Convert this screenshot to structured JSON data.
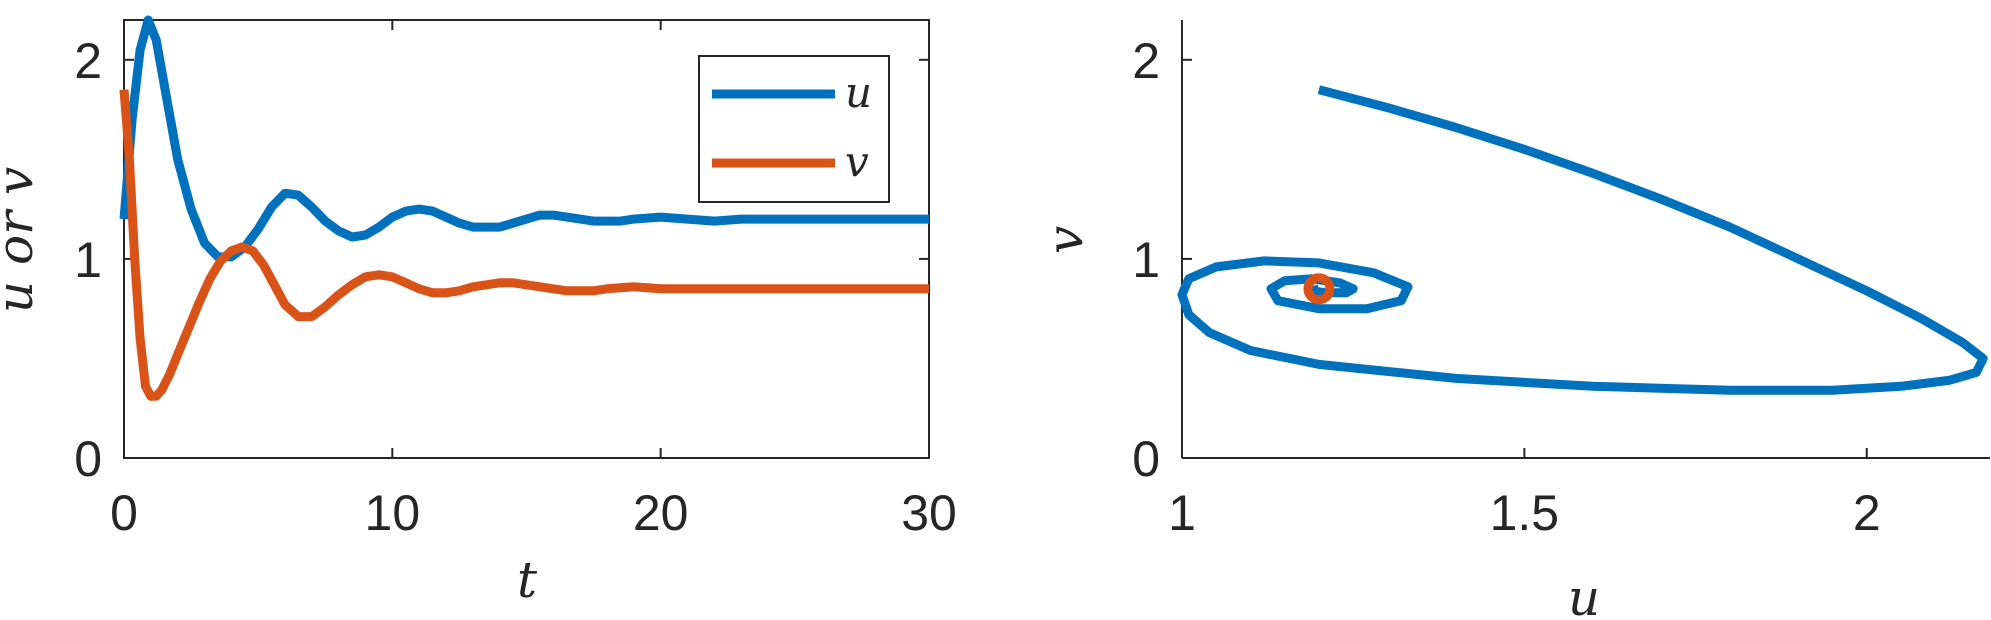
{
  "chart_data": [
    {
      "type": "line",
      "xlabel": "t",
      "ylabel": "u or v",
      "xlim": [
        0,
        30
      ],
      "ylim": [
        0,
        2.2
      ],
      "x_ticks": [
        "0",
        "10",
        "20",
        "30"
      ],
      "y_ticks": [
        "0",
        "1",
        "2"
      ],
      "grid": false,
      "legend_position": "top-right",
      "series": [
        {
          "name": "u",
          "color": "#0072BD",
          "x": [
            0,
            0.3,
            0.6,
            0.9,
            1.2,
            1.6,
            2.0,
            2.5,
            3.0,
            3.5,
            4.0,
            4.5,
            5.0,
            5.5,
            6.0,
            6.5,
            7.0,
            7.5,
            8.0,
            8.5,
            9.0,
            9.5,
            10.0,
            10.5,
            11.0,
            11.5,
            12.0,
            12.5,
            13.0,
            13.5,
            14.0,
            14.5,
            15.0,
            15.5,
            16.0,
            16.5,
            17.0,
            17.5,
            18.0,
            18.5,
            19.0,
            20.0,
            21.0,
            22.0,
            23.0,
            24.0,
            25.0,
            26.0,
            27.0,
            28.0,
            29.0,
            30.0
          ],
          "y": [
            1.2,
            1.7,
            2.05,
            2.2,
            2.1,
            1.8,
            1.5,
            1.25,
            1.08,
            1.01,
            1.01,
            1.06,
            1.15,
            1.26,
            1.33,
            1.32,
            1.26,
            1.19,
            1.14,
            1.11,
            1.12,
            1.16,
            1.21,
            1.24,
            1.25,
            1.24,
            1.21,
            1.18,
            1.16,
            1.16,
            1.16,
            1.18,
            1.2,
            1.22,
            1.22,
            1.21,
            1.2,
            1.19,
            1.19,
            1.19,
            1.2,
            1.21,
            1.2,
            1.19,
            1.2,
            1.2,
            1.2,
            1.2,
            1.2,
            1.2,
            1.2,
            1.2
          ]
        },
        {
          "name": "v",
          "color": "#D95319",
          "x": [
            0,
            0.2,
            0.4,
            0.6,
            0.8,
            1.0,
            1.2,
            1.4,
            1.7,
            2.0,
            2.4,
            2.8,
            3.2,
            3.6,
            4.0,
            4.4,
            4.8,
            5.2,
            5.6,
            6.0,
            6.5,
            7.0,
            7.5,
            8.0,
            8.5,
            9.0,
            9.5,
            10.0,
            10.5,
            11.0,
            11.5,
            12.0,
            12.5,
            13.0,
            13.5,
            14.0,
            14.5,
            15.0,
            15.5,
            16.0,
            16.5,
            17.0,
            17.5,
            18.0,
            19.0,
            20.0,
            21.0,
            22.0,
            23.0,
            24.0,
            25.0,
            26.0,
            27.0,
            28.0,
            29.0,
            30.0
          ],
          "y": [
            1.85,
            1.5,
            1.0,
            0.6,
            0.36,
            0.31,
            0.31,
            0.34,
            0.42,
            0.52,
            0.65,
            0.78,
            0.9,
            0.99,
            1.04,
            1.06,
            1.04,
            0.97,
            0.87,
            0.77,
            0.71,
            0.71,
            0.76,
            0.82,
            0.87,
            0.91,
            0.92,
            0.91,
            0.88,
            0.85,
            0.83,
            0.83,
            0.84,
            0.86,
            0.87,
            0.88,
            0.88,
            0.87,
            0.86,
            0.85,
            0.84,
            0.84,
            0.84,
            0.85,
            0.86,
            0.85,
            0.85,
            0.85,
            0.85,
            0.85,
            0.85,
            0.85,
            0.85,
            0.85,
            0.85,
            0.85
          ]
        }
      ]
    },
    {
      "type": "line",
      "xlabel": "u",
      "ylabel": "v",
      "xlim": [
        1,
        2.18
      ],
      "ylim": [
        0,
        2.2
      ],
      "x_ticks": [
        "1",
        "1.5",
        "2"
      ],
      "y_ticks": [
        "0",
        "1",
        "2"
      ],
      "grid": false,
      "series": [
        {
          "color": "#0072BD",
          "u": [
            1.2,
            1.3,
            1.4,
            1.5,
            1.6,
            1.7,
            1.8,
            1.9,
            2.0,
            2.08,
            2.14,
            2.17,
            2.16,
            2.12,
            2.05,
            1.95,
            1.8,
            1.6,
            1.4,
            1.2,
            1.1,
            1.04,
            1.01,
            1.0,
            1.01,
            1.05,
            1.12,
            1.2,
            1.28,
            1.33,
            1.32,
            1.27,
            1.2,
            1.14,
            1.13,
            1.15,
            1.19,
            1.23,
            1.25,
            1.24,
            1.21,
            1.19,
            1.2
          ],
          "v": [
            1.85,
            1.76,
            1.66,
            1.55,
            1.43,
            1.3,
            1.16,
            1.0,
            0.84,
            0.7,
            0.58,
            0.5,
            0.43,
            0.39,
            0.36,
            0.34,
            0.34,
            0.36,
            0.4,
            0.47,
            0.54,
            0.63,
            0.72,
            0.82,
            0.9,
            0.96,
            0.99,
            0.98,
            0.93,
            0.86,
            0.79,
            0.75,
            0.75,
            0.79,
            0.85,
            0.89,
            0.9,
            0.88,
            0.85,
            0.83,
            0.83,
            0.84,
            0.85
          ]
        }
      ],
      "equilibrium": {
        "u": 1.2,
        "v": 0.85,
        "color": "#D95319"
      }
    }
  ]
}
